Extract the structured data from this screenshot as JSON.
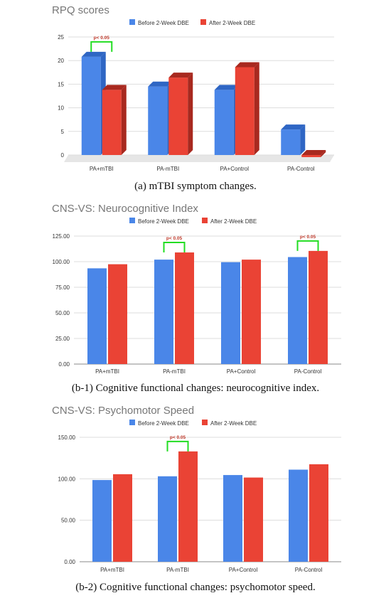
{
  "colors": {
    "before": "#4a86e8",
    "before_side": "#2f66c4",
    "after": "#ea4335",
    "after_side": "#a8291f",
    "significance_bracket": "#22dd22",
    "significance_text": "#c0392b",
    "grid": "#dddddd",
    "title": "#777777"
  },
  "chart_data": [
    {
      "type": "bar",
      "title": "RPQ scores",
      "categories": [
        "PA+mTBI",
        "PA-mTBI",
        "PA+Control",
        "PA-Control"
      ],
      "series": [
        {
          "name": "Before 2-Week DBE",
          "values": [
            20.8,
            14.5,
            13.8,
            5.4
          ]
        },
        {
          "name": "After 2-Week DBE",
          "values": [
            13.8,
            16.4,
            18.6,
            -0.6
          ]
        }
      ],
      "ylim": [
        0,
        25
      ],
      "yticks": [
        0,
        5,
        10,
        15,
        20,
        25
      ],
      "ytick_labels": [
        "0",
        "5",
        "10",
        "15",
        "20",
        "25"
      ],
      "grid": true,
      "legend_position": "top-center",
      "style": "3d",
      "annotations": [
        {
          "text": "p< 0.05",
          "category_index": 0
        }
      ],
      "caption": "(a) mTBI symptom changes."
    },
    {
      "type": "bar",
      "title": "CNS-VS: Neurocognitive Index",
      "categories": [
        "PA+mTBI",
        "PA-mTBI",
        "PA+Control",
        "PA-Control"
      ],
      "series": [
        {
          "name": "Before 2-Week DBE",
          "values": [
            93.5,
            102.0,
            99.5,
            104.5
          ]
        },
        {
          "name": "After 2-Week DBE",
          "values": [
            97.5,
            109.0,
            102.0,
            110.5
          ]
        }
      ],
      "ylim": [
        0,
        125
      ],
      "yticks": [
        0,
        25,
        50,
        75,
        100,
        125
      ],
      "ytick_labels": [
        "0.00",
        "25.00",
        "50.00",
        "75.00",
        "100.00",
        "125.00"
      ],
      "grid": true,
      "legend_position": "top-center",
      "annotations": [
        {
          "text": "p< 0.05",
          "category_index": 1
        },
        {
          "text": "p< 0.05",
          "category_index": 3
        }
      ],
      "caption": "(b-1) Cognitive functional changes: neurocognitive index."
    },
    {
      "type": "bar",
      "title": "CNS-VS: Psychomotor Speed",
      "categories": [
        "PA+mTBI",
        "PA-mTBI",
        "PA+Control",
        "PA-Control"
      ],
      "series": [
        {
          "name": "Before 2-Week DBE",
          "values": [
            98.5,
            103.0,
            104.5,
            111.0
          ]
        },
        {
          "name": "After 2-Week DBE",
          "values": [
            105.5,
            133.0,
            101.5,
            117.5
          ]
        }
      ],
      "ylim": [
        0,
        150
      ],
      "yticks": [
        0,
        50,
        100,
        150
      ],
      "ytick_labels": [
        "0.00",
        "50.00",
        "100.00",
        "150.00"
      ],
      "grid": true,
      "legend_position": "top-center",
      "annotations": [
        {
          "text": "p< 0.05",
          "category_index": 1
        }
      ],
      "caption": "(b-2) Cognitive functional changes: psychomotor speed."
    }
  ]
}
